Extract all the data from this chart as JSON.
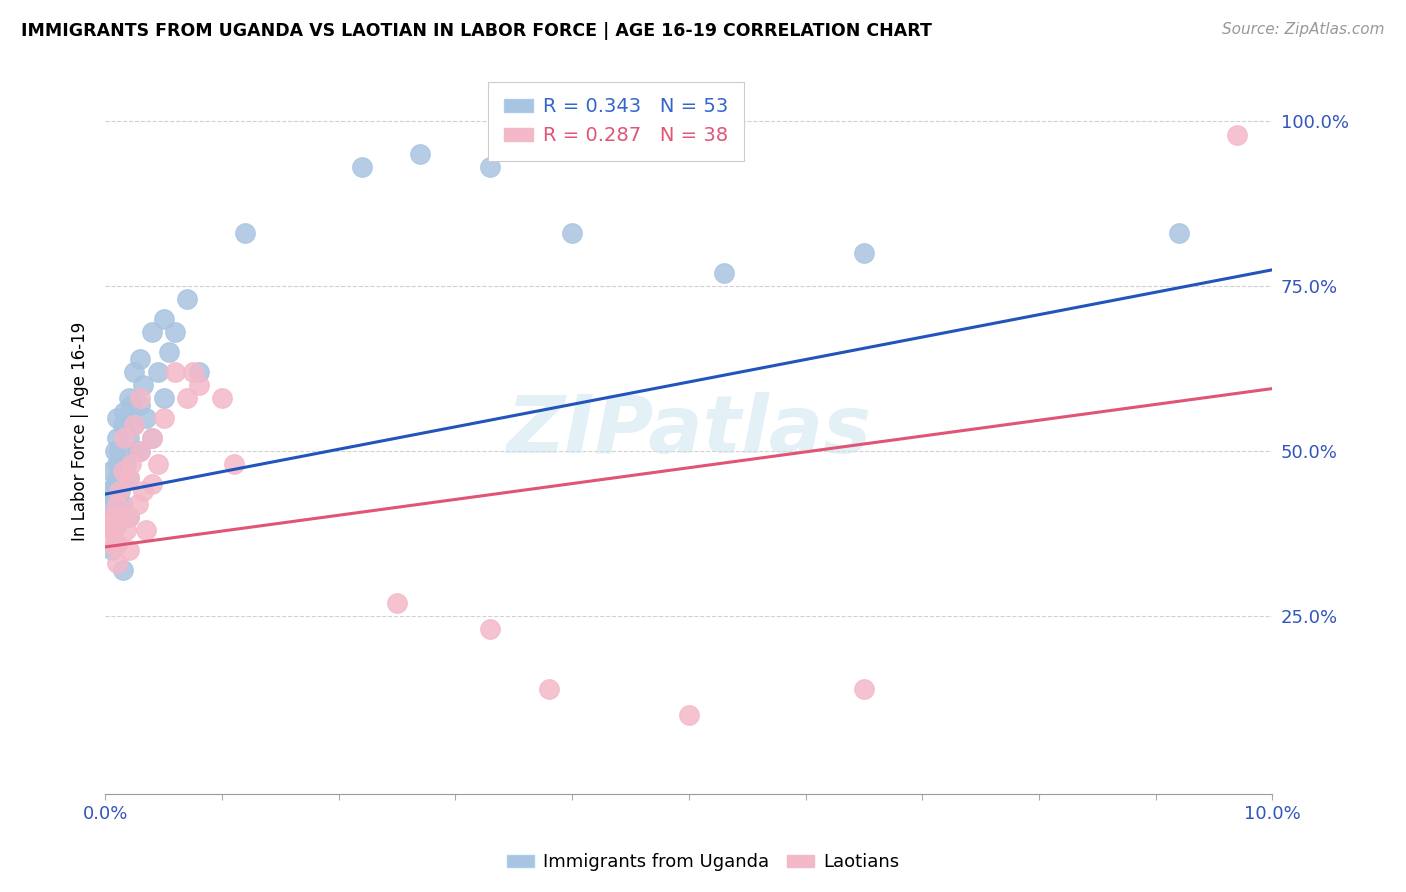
{
  "title": "IMMIGRANTS FROM UGANDA VS LAOTIAN IN LABOR FORCE | AGE 16-19 CORRELATION CHART",
  "source": "Source: ZipAtlas.com",
  "ylabel": "In Labor Force | Age 16-19",
  "xlim": [
    0.0,
    0.1
  ],
  "ylim": [
    -0.02,
    1.08
  ],
  "blue_color": "#a8c4e0",
  "pink_color": "#f4b8c8",
  "blue_line_color": "#2255bb",
  "pink_line_color": "#e05575",
  "watermark": "ZIPatlas",
  "blue_trend_x": [
    0.0,
    0.1
  ],
  "blue_trend_y": [
    0.435,
    0.775
  ],
  "pink_trend_x": [
    0.0,
    0.1
  ],
  "pink_trend_y": [
    0.355,
    0.595
  ],
  "blue_scatter_x": [
    0.0002,
    0.0004,
    0.0005,
    0.0006,
    0.0007,
    0.0007,
    0.0008,
    0.0008,
    0.0009,
    0.001,
    0.001,
    0.001,
    0.001,
    0.001,
    0.0012,
    0.0013,
    0.0014,
    0.0015,
    0.0016,
    0.0018,
    0.002,
    0.002,
    0.002,
    0.002,
    0.0022,
    0.0024,
    0.0025,
    0.0027,
    0.003,
    0.003,
    0.003,
    0.0032,
    0.0035,
    0.004,
    0.004,
    0.0045,
    0.005,
    0.005,
    0.0055,
    0.006,
    0.007,
    0.008,
    0.012,
    0.022,
    0.027,
    0.033,
    0.04,
    0.053,
    0.065,
    0.092,
    0.0006,
    0.001,
    0.0015
  ],
  "blue_scatter_y": [
    0.44,
    0.42,
    0.47,
    0.4,
    0.38,
    0.43,
    0.45,
    0.5,
    0.36,
    0.48,
    0.43,
    0.52,
    0.55,
    0.46,
    0.5,
    0.44,
    0.42,
    0.54,
    0.56,
    0.48,
    0.58,
    0.52,
    0.46,
    0.4,
    0.57,
    0.54,
    0.62,
    0.5,
    0.64,
    0.57,
    0.5,
    0.6,
    0.55,
    0.68,
    0.52,
    0.62,
    0.7,
    0.58,
    0.65,
    0.68,
    0.73,
    0.62,
    0.83,
    0.93,
    0.95,
    0.93,
    0.83,
    0.77,
    0.8,
    0.83,
    0.35,
    0.39,
    0.32
  ],
  "pink_scatter_x": [
    0.0003,
    0.0005,
    0.0006,
    0.0007,
    0.001,
    0.001,
    0.001,
    0.0012,
    0.0014,
    0.0015,
    0.0016,
    0.0018,
    0.002,
    0.002,
    0.002,
    0.0022,
    0.0025,
    0.0028,
    0.003,
    0.003,
    0.0032,
    0.0035,
    0.004,
    0.004,
    0.0045,
    0.005,
    0.006,
    0.007,
    0.0075,
    0.008,
    0.01,
    0.011,
    0.025,
    0.033,
    0.038,
    0.05,
    0.065,
    0.097
  ],
  "pink_scatter_y": [
    0.39,
    0.36,
    0.4,
    0.38,
    0.42,
    0.36,
    0.33,
    0.44,
    0.4,
    0.47,
    0.52,
    0.38,
    0.46,
    0.4,
    0.35,
    0.48,
    0.54,
    0.42,
    0.58,
    0.5,
    0.44,
    0.38,
    0.52,
    0.45,
    0.48,
    0.55,
    0.62,
    0.58,
    0.62,
    0.6,
    0.58,
    0.48,
    0.27,
    0.23,
    0.14,
    0.1,
    0.14,
    0.98
  ]
}
